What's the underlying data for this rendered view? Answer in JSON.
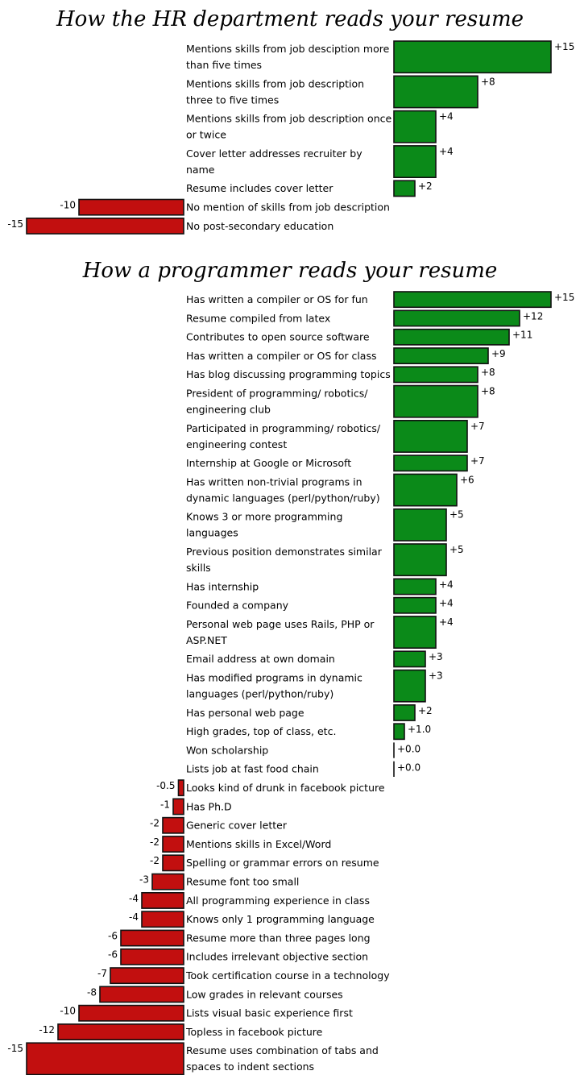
{
  "chart_data": [
    {
      "type": "bar",
      "orientation": "horizontal",
      "title": "How the HR department reads your resume",
      "categories": [
        "Mentions skills from job desciption more than five times",
        "Mentions skills from job description three to five times",
        "Mentions skills from job description once or twice",
        "Cover letter addresses recruiter by name",
        "Resume includes cover letter",
        "No mention of skills from job description",
        "No post-secondary education"
      ],
      "values": [
        15,
        8,
        4,
        4,
        2,
        -10,
        -15
      ],
      "value_labels": [
        "+15",
        "+8",
        "+4",
        "+4",
        "+2",
        "-10",
        "-15"
      ],
      "xlim": [
        -15,
        15
      ],
      "grid": false,
      "colors": {
        "positive": "#0b8a19",
        "negative": "#c20f0f"
      }
    },
    {
      "type": "bar",
      "orientation": "horizontal",
      "title": "How a programmer reads your resume",
      "categories": [
        "Has written a compiler or OS for fun",
        "Resume compiled from latex",
        "Contributes to open source software",
        "Has written a compiler or OS for class",
        "Has blog discussing programming topics",
        "President of programming/ robotics/ engineering club",
        "Participated in programming/ robotics/ engineering contest",
        "Internship at Google or Microsoft",
        "Has written non-trivial programs in dynamic languages (perl/python/ruby)",
        "Knows 3 or more programming languages",
        "Previous position demonstrates similar skills",
        "Has internship",
        "Founded a company",
        "Personal web page uses Rails, PHP or ASP.NET",
        "Email address at own domain",
        "Has modified programs in dynamic languages (perl/python/ruby)",
        "Has personal web page",
        "High grades, top of class, etc.",
        "Won scholarship",
        "Lists job at fast food chain",
        "Looks kind of drunk in facebook picture",
        "Has Ph.D",
        "Generic cover letter",
        "Mentions skills in Excel/Word",
        "Spelling or grammar errors on resume",
        "Resume font too small",
        "All programming experience in class",
        "Knows only 1 programming language",
        "Resume more than three pages long",
        "Includes irrelevant objective section",
        "Took certification course in a technology",
        "Low grades in relevant courses",
        "Lists visual basic experience first",
        "Topless in facebook picture",
        "Resume uses combination of tabs and spaces to indent sections"
      ],
      "values": [
        15,
        12,
        11,
        9,
        8,
        8,
        7,
        7,
        6,
        5,
        5,
        4,
        4,
        4,
        3,
        3,
        2,
        1.0,
        0.0,
        0.0,
        -0.5,
        -1,
        -2,
        -2,
        -2,
        -3,
        -4,
        -4,
        -6,
        -6,
        -7,
        -8,
        -10,
        -12,
        -15
      ],
      "value_labels": [
        "+15",
        "+12",
        "+11",
        "+9",
        "+8",
        "+8",
        "+7",
        "+7",
        "+6",
        "+5",
        "+5",
        "+4",
        "+4",
        "+4",
        "+3",
        "+3",
        "+2",
        "+1.0",
        "+0.0",
        "+0.0",
        "-0.5",
        "-1",
        "-2",
        "-2",
        "-2",
        "-3",
        "-4",
        "-4",
        "-6",
        "-6",
        "-7",
        "-8",
        "-10",
        "-12",
        "-15"
      ],
      "xlim": [
        -15,
        15
      ],
      "grid": false,
      "colors": {
        "positive": "#0b8a19",
        "negative": "#c20f0f"
      }
    }
  ]
}
